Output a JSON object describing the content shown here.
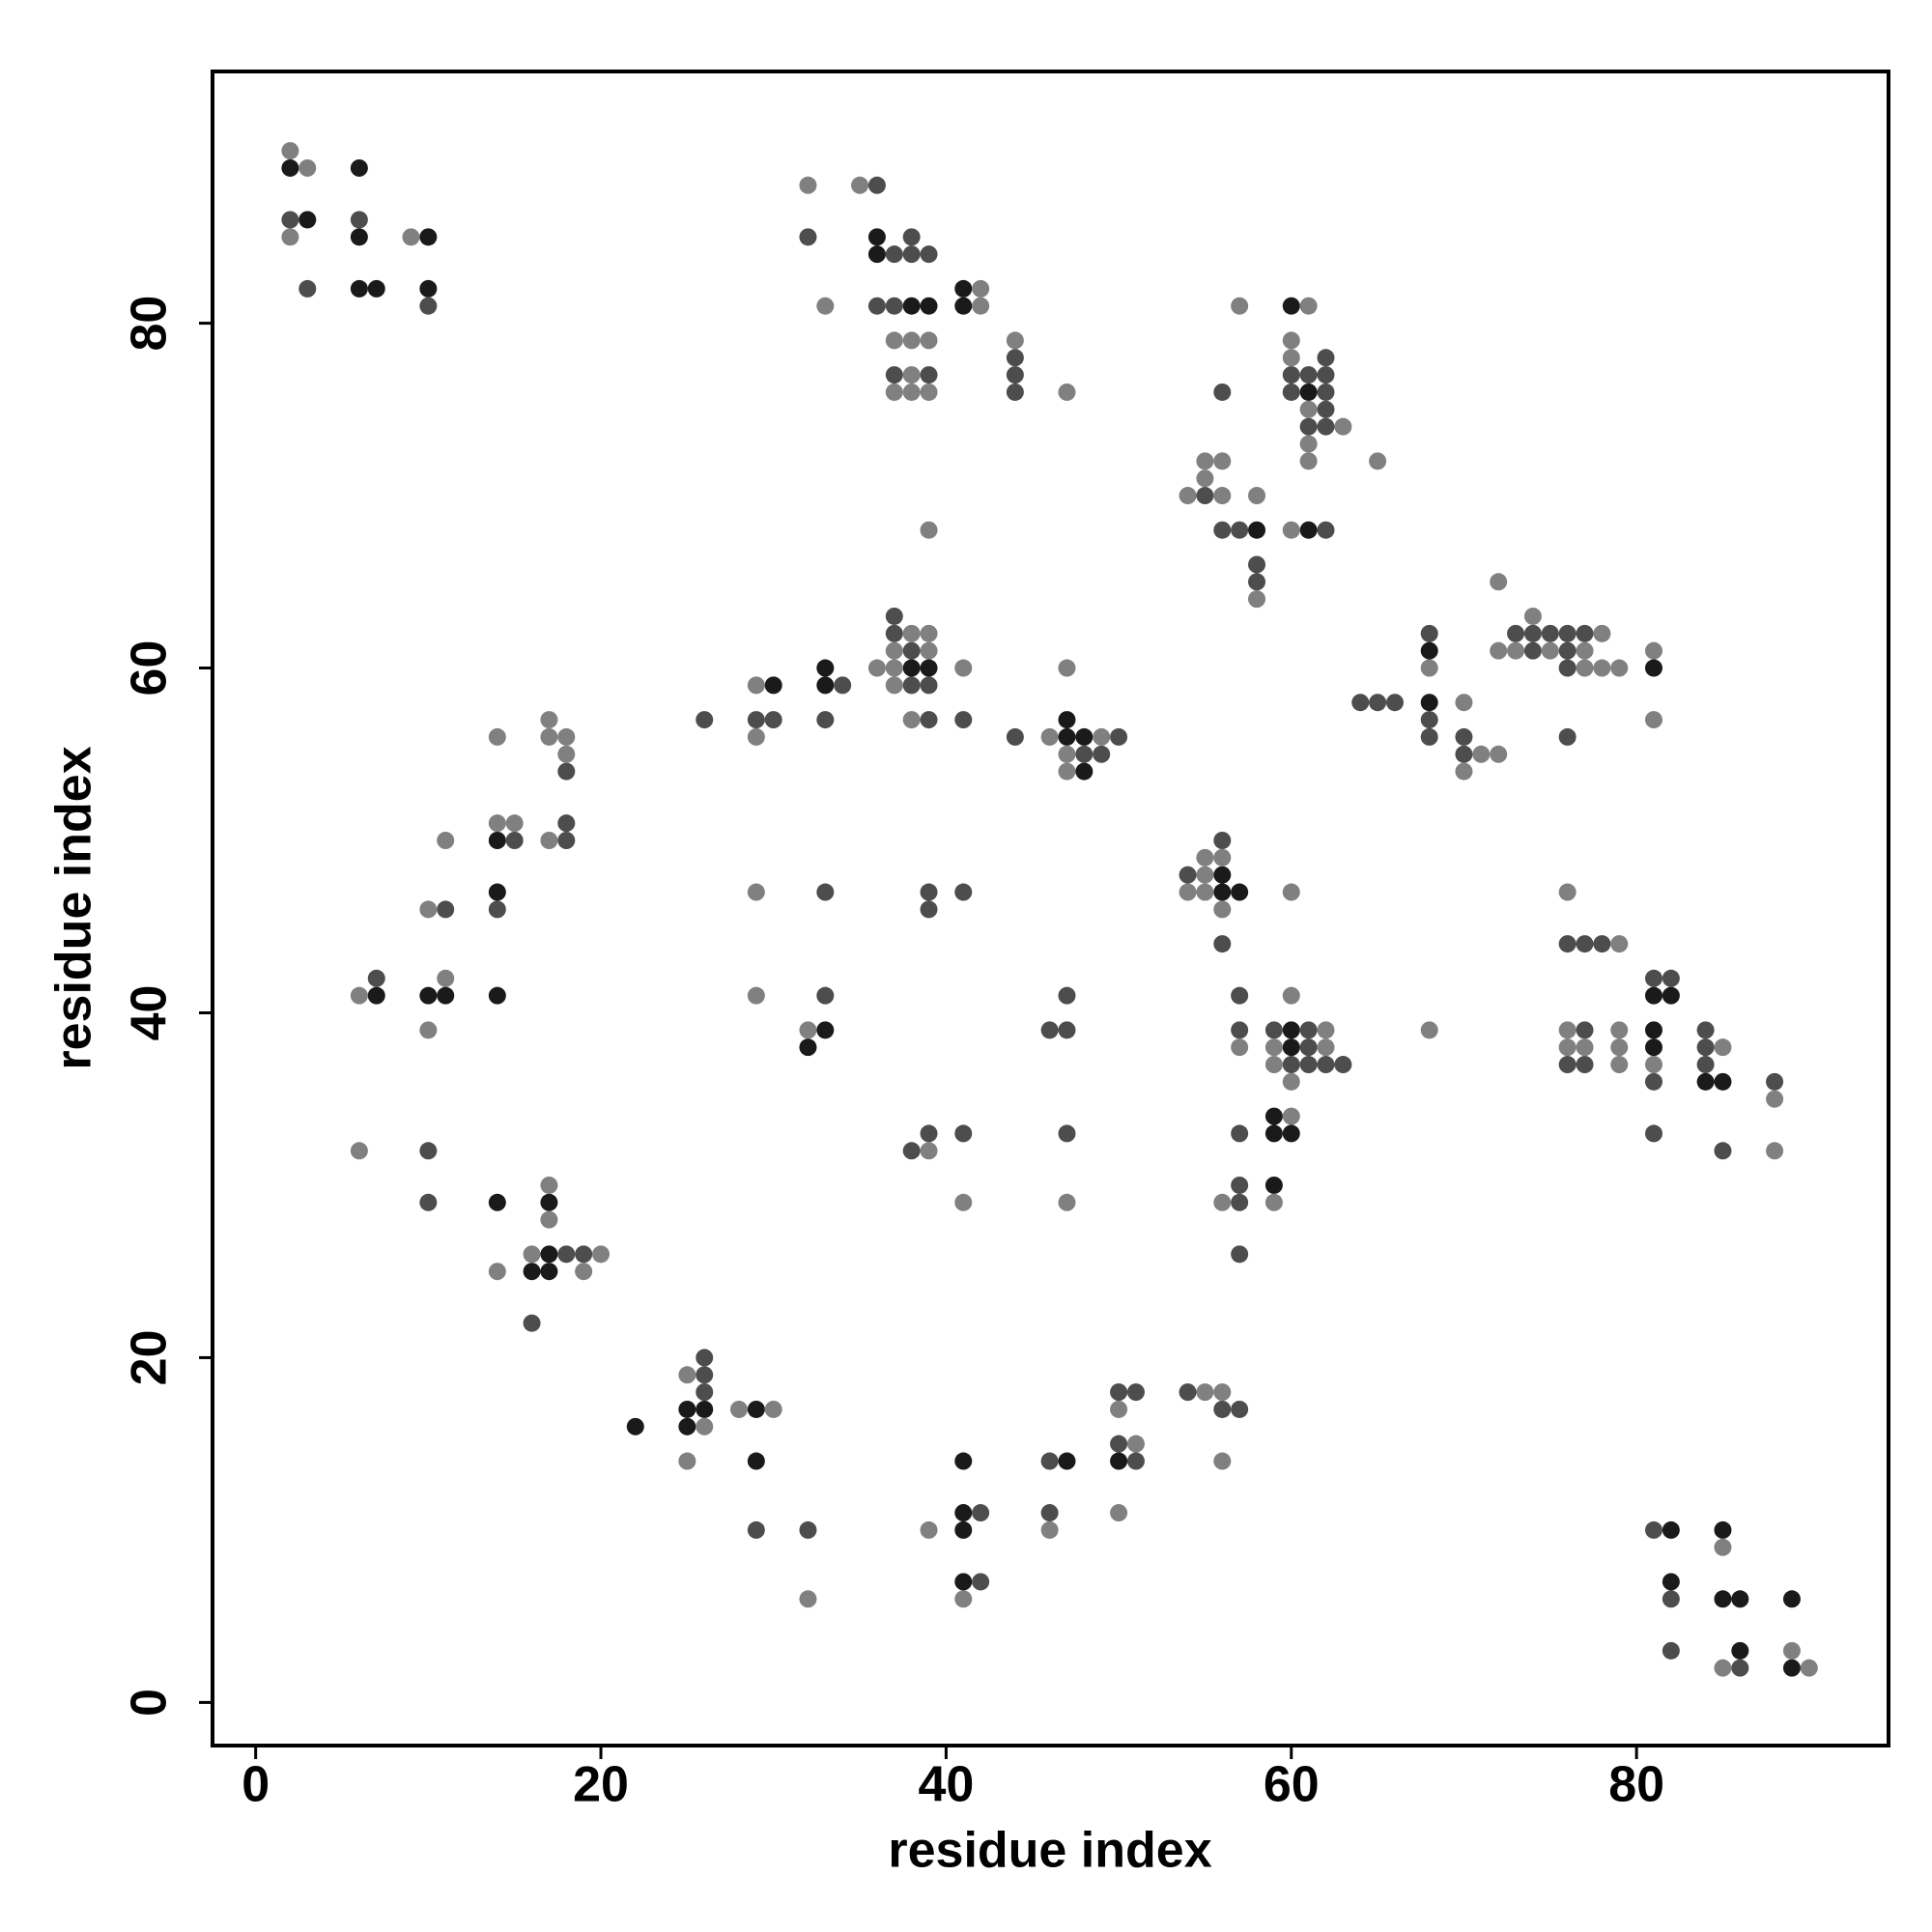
{
  "chart_data": {
    "type": "scatter",
    "xlabel": "residue index",
    "ylabel": "residue index",
    "xlim": [
      -2.5,
      94.6
    ],
    "ylim": [
      -2.5,
      94.6
    ],
    "xticks": [
      0,
      20,
      40,
      60,
      80
    ],
    "yticks": [
      0,
      20,
      40,
      60,
      80
    ],
    "series": [
      {
        "color": "#1a1a1a",
        "x": [
          2,
          3,
          6,
          6,
          10,
          36,
          36,
          6,
          7,
          10,
          41,
          38,
          39,
          41,
          60,
          61,
          58,
          61,
          68,
          33,
          38,
          39,
          81,
          30,
          33,
          68,
          47,
          47,
          48,
          48,
          14,
          56,
          14,
          56,
          57,
          7,
          10,
          11,
          14,
          81,
          82,
          33,
          60,
          81,
          32,
          60,
          81,
          84,
          85,
          59,
          59,
          60,
          59,
          14,
          17,
          17,
          16,
          17,
          25,
          26,
          29,
          22,
          25,
          29,
          41,
          47,
          50,
          41,
          41,
          82,
          85,
          41,
          82,
          85,
          86,
          89,
          86,
          89
        ],
        "y": [
          89,
          86,
          89,
          85,
          85,
          85,
          84,
          82,
          82,
          82,
          82,
          81,
          81,
          81,
          81,
          76,
          68,
          68,
          61,
          60,
          60,
          60,
          60,
          59,
          59,
          58,
          57,
          56,
          56,
          54,
          50,
          48,
          47,
          47,
          47,
          41,
          41,
          41,
          41,
          41,
          41,
          39,
          39,
          39,
          38,
          38,
          38,
          36,
          36,
          34,
          33,
          33,
          30,
          29,
          29,
          26,
          25,
          25,
          17,
          17,
          17,
          16,
          16,
          14,
          14,
          14,
          14,
          11,
          10,
          10,
          10,
          7,
          7,
          6,
          6,
          6,
          3,
          2
        ]
      },
      {
        "color": "#4d4d4d",
        "x": [
          36,
          2,
          6,
          32,
          38,
          37,
          38,
          39,
          3,
          10,
          36,
          37,
          44,
          62,
          37,
          39,
          44,
          60,
          61,
          62,
          44,
          56,
          60,
          62,
          62,
          61,
          62,
          55,
          56,
          57,
          62,
          58,
          58,
          37,
          37,
          68,
          73,
          74,
          75,
          76,
          77,
          38,
          74,
          76,
          76,
          34,
          38,
          39,
          64,
          65,
          66,
          26,
          29,
          30,
          33,
          39,
          41,
          68,
          44,
          50,
          68,
          70,
          76,
          48,
          49,
          70,
          18,
          18,
          15,
          18,
          56,
          54,
          33,
          39,
          41,
          11,
          14,
          39,
          56,
          76,
          77,
          78,
          7,
          81,
          82,
          33,
          47,
          57,
          46,
          47,
          57,
          59,
          61,
          77,
          84,
          61,
          84,
          60,
          61,
          62,
          63,
          76,
          77,
          84,
          81,
          88,
          39,
          41,
          47,
          57,
          81,
          10,
          38,
          85,
          57,
          10,
          57,
          18,
          19,
          57,
          16,
          26,
          26,
          26,
          50,
          51,
          54,
          56,
          57,
          50,
          46,
          51,
          42,
          46,
          29,
          32,
          81,
          42,
          82,
          82,
          86
        ],
        "y": [
          88,
          86,
          86,
          85,
          85,
          84,
          84,
          84,
          82,
          81,
          81,
          81,
          78,
          78,
          77,
          77,
          77,
          77,
          77,
          77,
          76,
          76,
          76,
          76,
          75,
          74,
          74,
          70,
          68,
          68,
          68,
          66,
          65,
          63,
          62,
          62,
          62,
          62,
          62,
          62,
          62,
          61,
          61,
          61,
          60,
          59,
          59,
          59,
          58,
          58,
          58,
          57,
          57,
          57,
          57,
          57,
          57,
          57,
          56,
          56,
          56,
          56,
          56,
          55,
          55,
          55,
          54,
          51,
          50,
          50,
          50,
          48,
          47,
          47,
          47,
          46,
          46,
          46,
          44,
          44,
          44,
          44,
          42,
          42,
          42,
          41,
          41,
          41,
          39,
          39,
          39,
          39,
          39,
          39,
          39,
          38,
          38,
          37,
          37,
          37,
          37,
          37,
          37,
          37,
          36,
          36,
          33,
          33,
          33,
          33,
          33,
          32,
          32,
          32,
          30,
          29,
          29,
          26,
          26,
          26,
          22,
          20,
          19,
          18,
          18,
          18,
          18,
          17,
          17,
          15,
          14,
          14,
          11,
          11,
          10,
          10,
          10,
          7,
          6,
          3,
          2
        ]
      },
      {
        "color": "#808080",
        "x": [
          2,
          3,
          32,
          35,
          2,
          9,
          42,
          33,
          42,
          57,
          61,
          37,
          38,
          39,
          44,
          60,
          60,
          38,
          37,
          38,
          39,
          47,
          61,
          63,
          61,
          55,
          56,
          61,
          65,
          55,
          54,
          56,
          58,
          39,
          60,
          58,
          72,
          74,
          38,
          39,
          78,
          37,
          39,
          72,
          73,
          75,
          77,
          81,
          36,
          37,
          41,
          47,
          68,
          77,
          78,
          79,
          29,
          37,
          70,
          38,
          81,
          17,
          14,
          17,
          18,
          29,
          46,
          49,
          18,
          47,
          71,
          72,
          47,
          70,
          14,
          15,
          11,
          17,
          55,
          56,
          55,
          29,
          54,
          55,
          60,
          76,
          10,
          56,
          79,
          11,
          6,
          29,
          60,
          10,
          32,
          62,
          68,
          76,
          79,
          57,
          59,
          62,
          76,
          77,
          79,
          85,
          59,
          79,
          81,
          60,
          88,
          60,
          6,
          39,
          88,
          17,
          41,
          47,
          56,
          59,
          17,
          16,
          20,
          14,
          19,
          25,
          55,
          56,
          28,
          30,
          50,
          26,
          51,
          25,
          56,
          50,
          39,
          46,
          85,
          32,
          41,
          89,
          85,
          90
        ],
        "y": [
          90,
          89,
          88,
          88,
          85,
          85,
          82,
          81,
          81,
          81,
          81,
          79,
          79,
          79,
          79,
          79,
          78,
          77,
          76,
          76,
          76,
          76,
          75,
          74,
          73,
          72,
          72,
          72,
          72,
          71,
          70,
          70,
          70,
          68,
          68,
          64,
          65,
          63,
          62,
          62,
          62,
          61,
          61,
          61,
          61,
          61,
          61,
          61,
          60,
          60,
          60,
          60,
          60,
          60,
          60,
          60,
          59,
          59,
          58,
          57,
          57,
          57,
          56,
          56,
          56,
          56,
          56,
          56,
          55,
          55,
          55,
          55,
          54,
          54,
          51,
          51,
          50,
          50,
          49,
          49,
          48,
          47,
          47,
          47,
          47,
          47,
          46,
          46,
          44,
          42,
          41,
          41,
          41,
          39,
          39,
          39,
          39,
          39,
          39,
          38,
          38,
          38,
          38,
          38,
          38,
          38,
          37,
          37,
          37,
          36,
          35,
          34,
          32,
          32,
          32,
          30,
          29,
          29,
          29,
          29,
          28,
          26,
          26,
          25,
          25,
          19,
          18,
          18,
          17,
          17,
          17,
          16,
          15,
          14,
          14,
          11,
          10,
          10,
          9,
          6,
          6,
          3,
          2,
          2
        ]
      }
    ]
  }
}
